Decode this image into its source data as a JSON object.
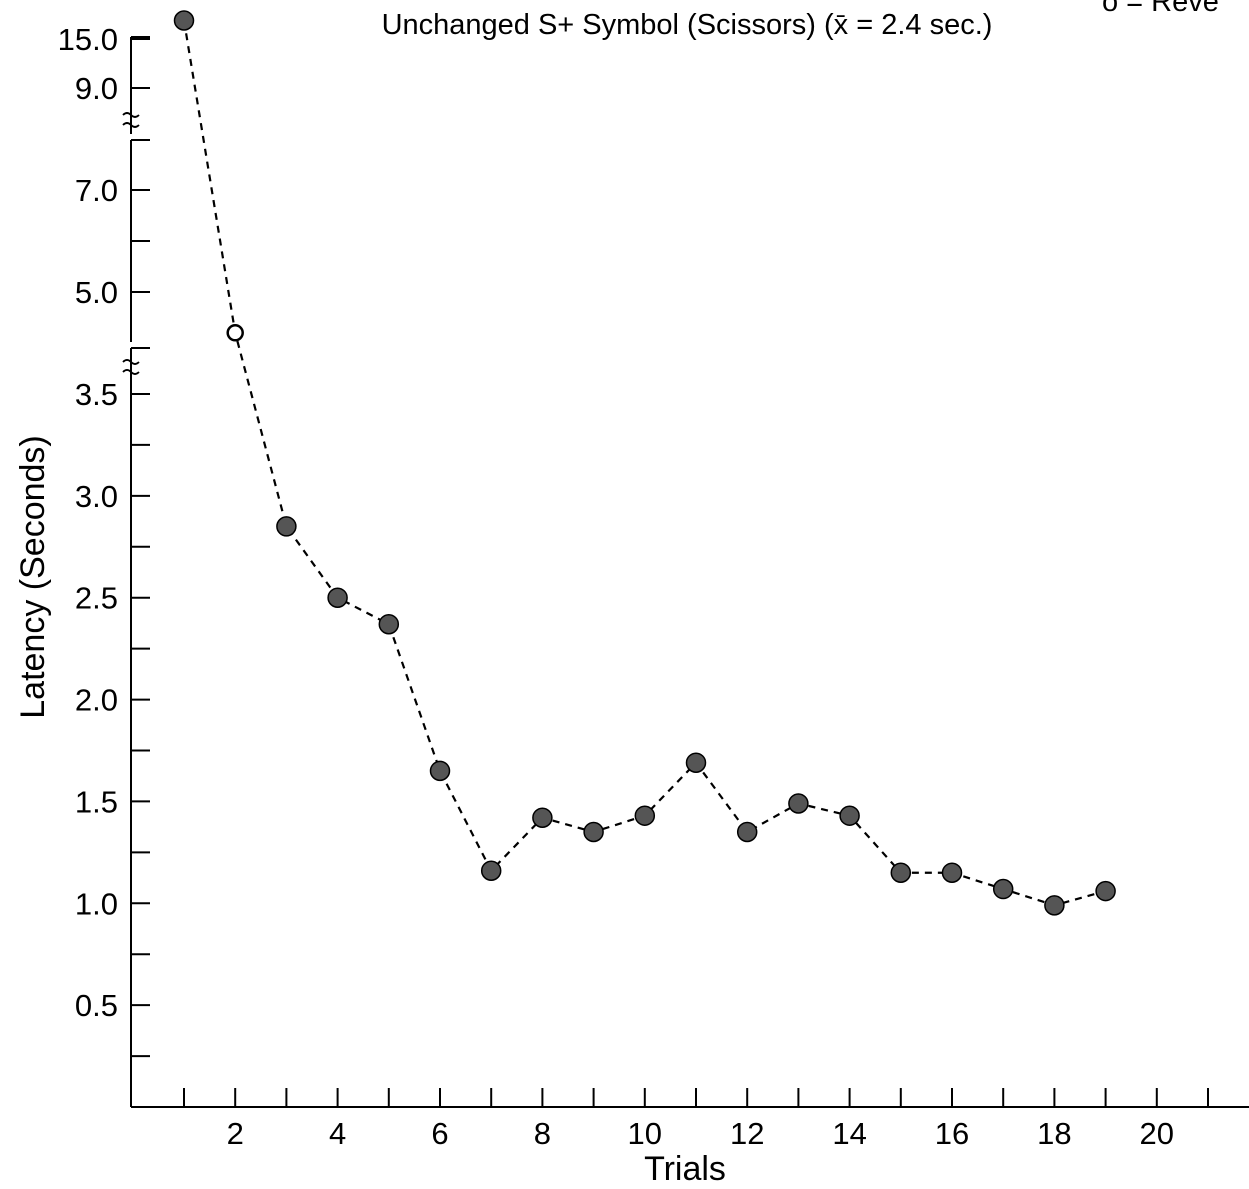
{
  "chart_data": {
    "type": "line",
    "title": "Unchanged S+ Symbol (Scissors) (x̄ = 2.4 sec.)",
    "legend_text": "o = Reve",
    "xlabel": "Trials",
    "ylabel": "Latency (Seconds)",
    "xlim": [
      0,
      21
    ],
    "x_ticks": [
      2,
      4,
      6,
      8,
      10,
      12,
      14,
      16,
      18,
      20
    ],
    "y_tick_labels": [
      "0.5",
      "1.0",
      "1.5",
      "2.0",
      "2.5",
      "3.0",
      "3.5",
      "5.0",
      "7.0",
      "9.0",
      "15.0"
    ],
    "y_axis_breaks": [
      "between 3.5 and 5.0",
      "between 7.0 and 9.0"
    ],
    "grid": false,
    "line_style": "dashed",
    "x": [
      1,
      2,
      3,
      4,
      5,
      6,
      7,
      8,
      9,
      10,
      11,
      12,
      13,
      14,
      15,
      16,
      17,
      18,
      19
    ],
    "values": [
      15.5,
      4.4,
      2.85,
      2.5,
      2.37,
      1.65,
      1.16,
      1.42,
      1.35,
      1.43,
      1.69,
      1.35,
      1.49,
      1.43,
      1.15,
      1.15,
      1.07,
      0.99,
      1.06
    ],
    "marker": [
      "filled",
      "open",
      "filled",
      "filled",
      "filled",
      "filled",
      "filled",
      "filled",
      "filled",
      "filled",
      "filled",
      "filled",
      "filled",
      "filled",
      "filled",
      "filled",
      "filled",
      "filled",
      "filled"
    ],
    "colors": {
      "filled_marker": "#555555",
      "open_marker": "#ffffff",
      "line": "#000000"
    }
  }
}
